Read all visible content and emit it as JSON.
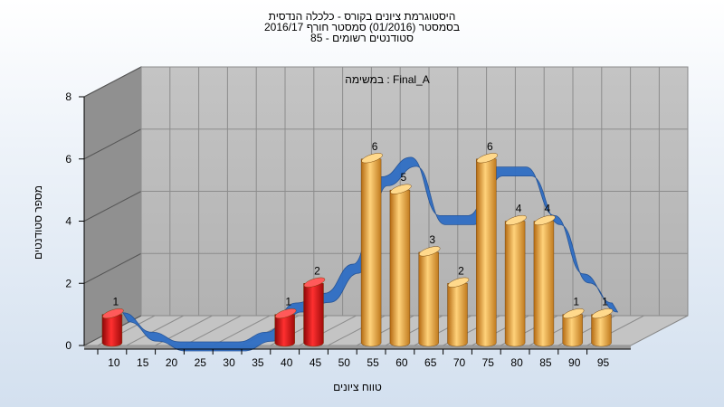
{
  "chart_data": {
    "type": "bar",
    "title": "היסטוגרמת ציונים בקורס - כלכלה הנדסית",
    "subtitle": "בסמסטר  (01/2016)  סמסטר חורף 2016/17",
    "subtitle2": "סטודנטים רשומים - 85",
    "annotation": "במשימה : Final_A",
    "xlabel": "טווח ציונים",
    "ylabel": "מספר סטודנטים",
    "categories": [
      "10",
      "15",
      "20",
      "25",
      "30",
      "35",
      "40",
      "45",
      "50",
      "55",
      "60",
      "65",
      "70",
      "75",
      "80",
      "85",
      "90",
      "95"
    ],
    "values": [
      1,
      0,
      0,
      0,
      0,
      0,
      1,
      2,
      0,
      6,
      5,
      3,
      2,
      6,
      4,
      4,
      1,
      1
    ],
    "bar_colors": [
      "red",
      "red",
      "red",
      "red",
      "red",
      "red",
      "red",
      "red",
      "red",
      "orange",
      "orange",
      "orange",
      "orange",
      "orange",
      "orange",
      "orange",
      "orange",
      "orange"
    ],
    "ylim": [
      0,
      8
    ],
    "yticks": [
      0,
      2,
      4,
      6,
      8
    ],
    "grid": true,
    "colors": {
      "fail": "#d81818",
      "pass": "#e9a23a",
      "curve_front": "#2f6ec4",
      "curve_back": "#6b6b6b",
      "wall": "#b8b8b8",
      "side": "#909090",
      "floor": "#c4c4c4"
    }
  }
}
